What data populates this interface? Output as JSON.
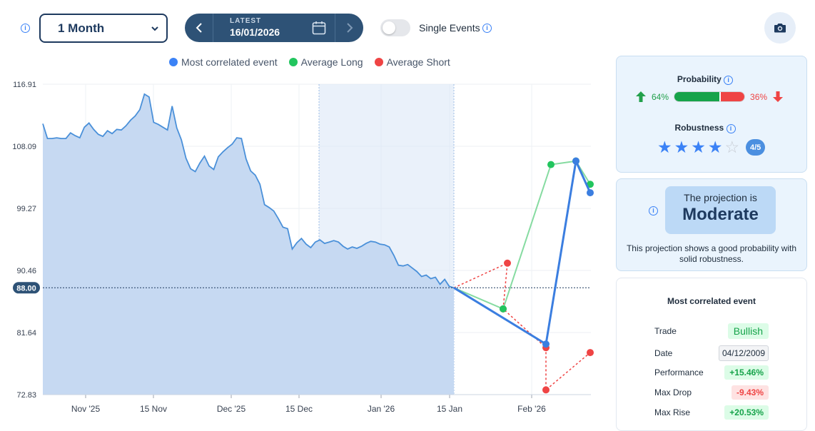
{
  "toolbar": {
    "period": "1 Month",
    "date_label": "LATEST",
    "date_value": "16/01/2026",
    "single_events_label": "Single Events"
  },
  "legend": [
    {
      "label": "Most correlated event",
      "color": "#3b82f6"
    },
    {
      "label": "Average Long",
      "color": "#22c55e"
    },
    {
      "label": "Average Short",
      "color": "#ef4444"
    }
  ],
  "chart_data": {
    "type": "line",
    "y_ticks": [
      "116.91",
      "108.09",
      "99.27",
      "90.46",
      "81.64",
      "72.83"
    ],
    "x_ticks": [
      "Nov '25",
      "15 Nov",
      "Dec '25",
      "15 Dec",
      "Jan '26",
      "15 Jan",
      "Feb '26"
    ],
    "current_value": "88.00",
    "ylim": [
      72.83,
      116.91
    ],
    "price_series": [
      111.3,
      109.2,
      109.2,
      109.3,
      109.2,
      109.2,
      110.0,
      109.6,
      109.3,
      110.8,
      111.4,
      110.5,
      109.8,
      109.5,
      110.3,
      109.9,
      110.5,
      110.4,
      111.0,
      111.8,
      112.4,
      113.3,
      115.5,
      115.1,
      111.5,
      111.2,
      110.8,
      110.4,
      113.8,
      110.7,
      109.0,
      106.4,
      104.9,
      104.5,
      105.7,
      106.7,
      105.3,
      104.8,
      106.6,
      107.3,
      107.9,
      108.4,
      109.3,
      109.2,
      106.3,
      104.6,
      104.0,
      102.7,
      99.8,
      99.4,
      98.9,
      97.8,
      96.6,
      96.4,
      93.5,
      94.4,
      95.0,
      94.2,
      93.7,
      94.5,
      94.8,
      94.3,
      94.5,
      94.7,
      94.5,
      93.9,
      93.5,
      93.8,
      93.6,
      93.9,
      94.3,
      94.6,
      94.5,
      94.2,
      94.1,
      93.8,
      92.6,
      91.2,
      91.1,
      91.3,
      90.8,
      90.3,
      89.6,
      89.8,
      89.3,
      89.5,
      88.5,
      89.2,
      88.2,
      88.0
    ],
    "projection_end_x_label": "Feb '26",
    "most_correlated": [
      88.0,
      80.0,
      106.0,
      101.5
    ],
    "average_long": [
      88.0,
      85.0,
      105.5,
      106.0,
      102.7
    ],
    "average_short": [
      88.0,
      91.5,
      85.0,
      79.5,
      73.5,
      78.8
    ]
  },
  "probability": {
    "title": "Probability",
    "up_pct": "64%",
    "down_pct": "36%",
    "up_value": 0.64
  },
  "robustness": {
    "title": "Robustness",
    "stars_filled": 4,
    "stars_total": 5,
    "badge": "4/5"
  },
  "projection": {
    "line1": "The projection is",
    "level": "Moderate",
    "description": "This projection shows a good probability with solid robustness."
  },
  "event": {
    "title": "Most correlated event",
    "rows": [
      {
        "label": "Trade",
        "value": "Bullish",
        "style": "bull"
      },
      {
        "label": "Date",
        "value": "04/12/2009",
        "style": "date"
      },
      {
        "label": "Performance",
        "value": "+15.46%",
        "style": "pos"
      },
      {
        "label": "Max Drop",
        "value": "-9.43%",
        "style": "neg"
      },
      {
        "label": "Max Rise",
        "value": "+20.53%",
        "style": "pos"
      }
    ]
  },
  "colors": {
    "primary": "#1e3a5f",
    "blue": "#3b82f6",
    "green": "#22c55e",
    "red": "#ef4444",
    "area": "#c6d9f2"
  }
}
